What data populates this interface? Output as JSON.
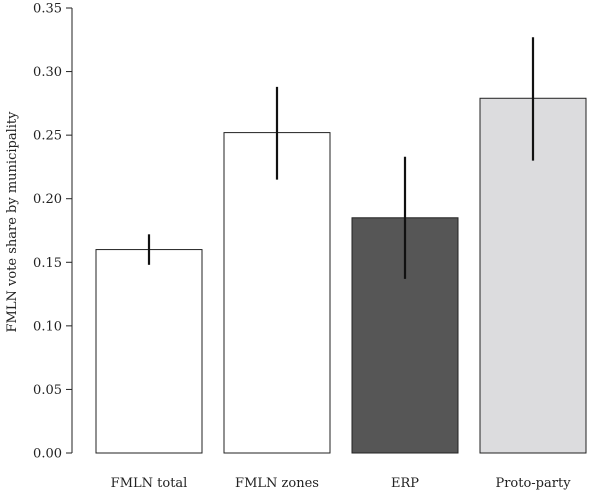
{
  "chart_data": {
    "type": "bar",
    "title": "",
    "xlabel": "",
    "ylabel": "FMLN vote share by municipality",
    "ylim": [
      0,
      0.35
    ],
    "yticks": [
      "0.00",
      "0.05",
      "0.10",
      "0.15",
      "0.20",
      "0.25",
      "0.30",
      "0.35"
    ],
    "grid": false,
    "categories": [
      "FMLN total",
      "FMLN zones",
      "ERP",
      "Proto-party"
    ],
    "values": [
      0.16,
      0.252,
      0.185,
      0.279
    ],
    "error_low": [
      0.148,
      0.215,
      0.137,
      0.23
    ],
    "error_high": [
      0.172,
      0.288,
      0.233,
      0.327
    ],
    "colors": [
      "#ffffff",
      "#ffffff",
      "#565656",
      "#dcdcde"
    ]
  }
}
